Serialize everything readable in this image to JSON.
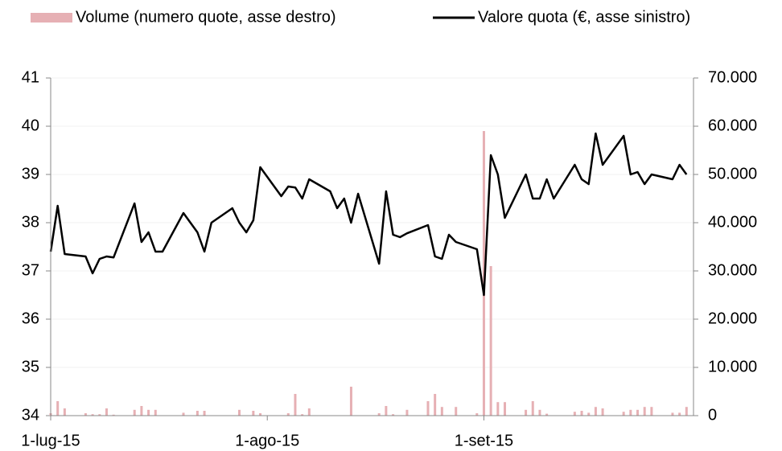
{
  "chart_data": {
    "type": "bar_line",
    "x": [
      "2015-07-01",
      "2015-07-02",
      "2015-07-03",
      "2015-07-06",
      "2015-07-07",
      "2015-07-08",
      "2015-07-09",
      "2015-07-10",
      "2015-07-13",
      "2015-07-14",
      "2015-07-15",
      "2015-07-16",
      "2015-07-17",
      "2015-07-20",
      "2015-07-21",
      "2015-07-22",
      "2015-07-23",
      "2015-07-24",
      "2015-07-27",
      "2015-07-28",
      "2015-07-29",
      "2015-07-30",
      "2015-07-31",
      "2015-08-03",
      "2015-08-04",
      "2015-08-05",
      "2015-08-06",
      "2015-08-07",
      "2015-08-10",
      "2015-08-11",
      "2015-08-12",
      "2015-08-13",
      "2015-08-14",
      "2015-08-17",
      "2015-08-18",
      "2015-08-19",
      "2015-08-20",
      "2015-08-21",
      "2015-08-24",
      "2015-08-25",
      "2015-08-26",
      "2015-08-27",
      "2015-08-28",
      "2015-08-31",
      "2015-09-01",
      "2015-09-02",
      "2015-09-03",
      "2015-09-04",
      "2015-09-07",
      "2015-09-08",
      "2015-09-09",
      "2015-09-10",
      "2015-09-11",
      "2015-09-14",
      "2015-09-15",
      "2015-09-16",
      "2015-09-17",
      "2015-09-18",
      "2015-09-21",
      "2015-09-22",
      "2015-09-23",
      "2015-09-24",
      "2015-09-25",
      "2015-09-28",
      "2015-09-29",
      "2015-09-30"
    ],
    "series": [
      {
        "name": "Volume (numero quote, asse destro)",
        "kind": "bar",
        "axis": "y2",
        "color": "#e6b0b4",
        "values": [
          500,
          3000,
          1500,
          500,
          300,
          300,
          1500,
          200,
          1200,
          2000,
          1200,
          1200,
          0,
          600,
          0,
          1000,
          1000,
          0,
          0,
          1200,
          0,
          1000,
          500,
          0,
          500,
          4500,
          300,
          1500,
          0,
          0,
          0,
          6000,
          0,
          500,
          2000,
          300,
          0,
          1200,
          3000,
          4500,
          1800,
          0,
          1800,
          500,
          59000,
          31000,
          2800,
          2800,
          1200,
          3000,
          1200,
          400,
          0,
          800,
          1000,
          600,
          1800,
          1500,
          800,
          1200,
          1200,
          1800,
          1800,
          600,
          600,
          1800
        ]
      },
      {
        "name": "Valore quota (€, asse sinistro)",
        "kind": "line",
        "color": "#000000",
        "values": [
          37.4,
          38.35,
          37.35,
          37.3,
          36.95,
          37.25,
          37.3,
          37.28,
          38.4,
          37.6,
          37.8,
          37.4,
          37.4,
          38.2,
          38.0,
          37.8,
          37.4,
          38.0,
          38.3,
          38.0,
          37.8,
          38.05,
          39.15,
          38.55,
          38.75,
          38.73,
          38.5,
          38.9,
          38.65,
          38.3,
          38.5,
          38.0,
          38.6,
          37.15,
          38.65,
          37.75,
          37.7,
          37.78,
          37.95,
          37.3,
          37.25,
          37.75,
          37.6,
          37.45,
          36.5,
          39.4,
          39.0,
          38.1,
          39.0,
          38.5,
          38.5,
          38.9,
          38.5,
          39.2,
          38.9,
          38.8,
          39.85,
          39.2,
          39.8,
          39.0,
          39.05,
          38.8,
          39.0,
          38.9,
          39.2,
          39.0
        ]
      }
    ],
    "xlim": [
      "2015-07-01",
      "2015-10-01"
    ],
    "xticks": [
      {
        "value": "2015-07-01",
        "label": "1-lug-15"
      },
      {
        "value": "2015-08-01",
        "label": "1-ago-15"
      },
      {
        "value": "2015-09-01",
        "label": "1-set-15"
      }
    ],
    "ylim": [
      34,
      41
    ],
    "yticks": [
      34,
      35,
      36,
      37,
      38,
      39,
      40,
      41
    ],
    "y2lim": [
      0,
      70000
    ],
    "y2ticks": [
      0,
      {
        "value": 10000,
        "label": "10.000"
      },
      {
        "value": 20000,
        "label": "20.000"
      },
      {
        "value": 30000,
        "label": "30.000"
      },
      {
        "value": 40000,
        "label": "40.000"
      },
      {
        "value": 50000,
        "label": "50.000"
      },
      {
        "value": 60000,
        "label": "60.000"
      },
      {
        "value": 70000,
        "label": "70.000"
      }
    ],
    "grid": true,
    "legend": "top"
  }
}
